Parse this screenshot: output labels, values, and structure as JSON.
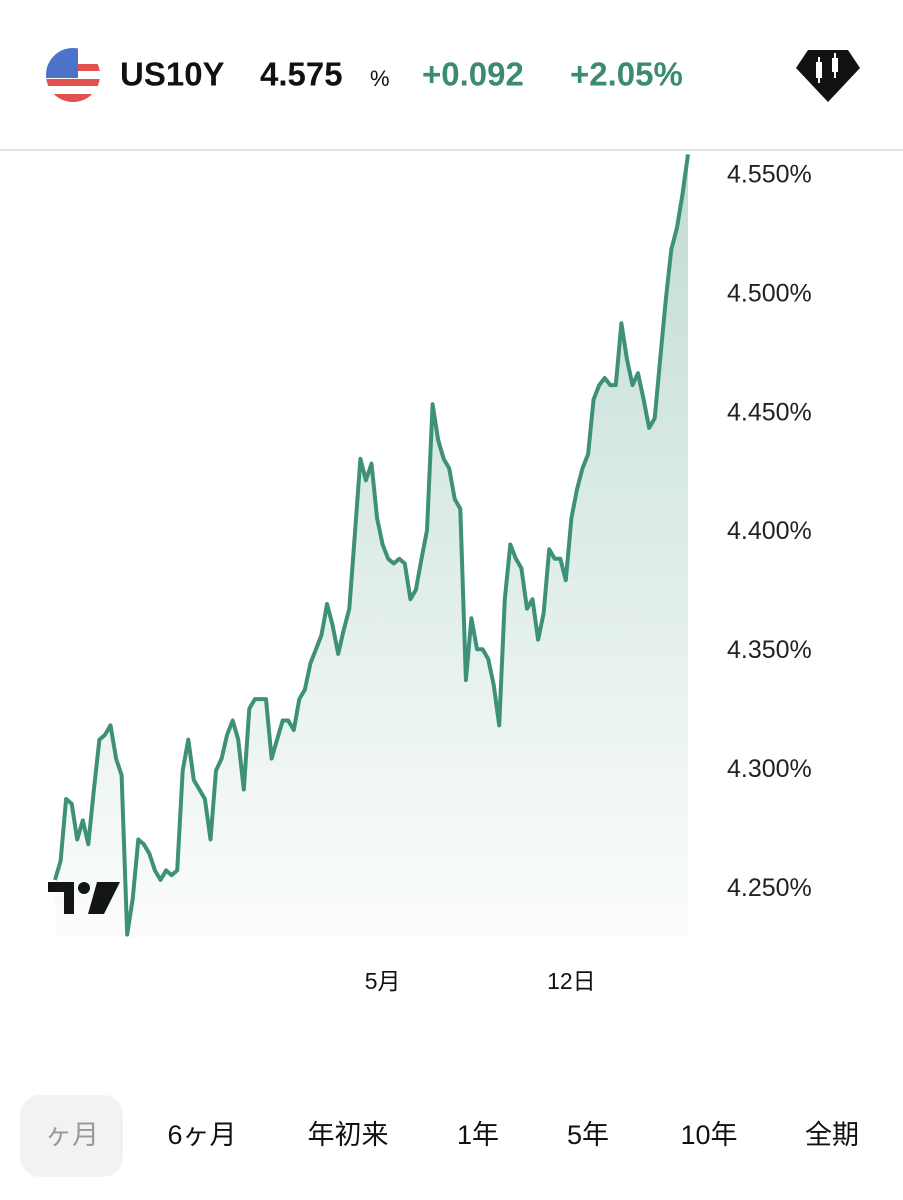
{
  "header": {
    "symbol": "US10Y",
    "price": "4.575",
    "unit": "%",
    "change": "+0.092",
    "change_percent": "+2.05%"
  },
  "chart_data": {
    "type": "line",
    "color": "#3e9079",
    "values": [
      4.254,
      4.262,
      4.288,
      4.286,
      4.271,
      4.279,
      4.269,
      4.292,
      4.313,
      4.315,
      4.319,
      4.305,
      4.298,
      4.231,
      4.246,
      4.271,
      4.269,
      4.265,
      4.258,
      4.254,
      4.258,
      4.256,
      4.258,
      4.3,
      4.313,
      4.296,
      4.292,
      4.288,
      4.271,
      4.3,
      4.305,
      4.315,
      4.321,
      4.313,
      4.292,
      4.326,
      4.33,
      4.33,
      4.33,
      4.305,
      4.313,
      4.321,
      4.321,
      4.317,
      4.33,
      4.334,
      4.345,
      4.351,
      4.357,
      4.37,
      4.361,
      4.349,
      4.359,
      4.368,
      4.399,
      4.431,
      4.422,
      4.429,
      4.406,
      4.395,
      4.389,
      4.387,
      4.389,
      4.387,
      4.372,
      4.376,
      4.389,
      4.401,
      4.454,
      4.439,
      4.431,
      4.427,
      4.414,
      4.41,
      4.338,
      4.364,
      4.351,
      4.351,
      4.347,
      4.336,
      4.319,
      4.372,
      4.395,
      4.389,
      4.385,
      4.368,
      4.372,
      4.355,
      4.366,
      4.393,
      4.389,
      4.389,
      4.38,
      4.406,
      4.418,
      4.427,
      4.433,
      4.456,
      4.462,
      4.465,
      4.462,
      4.462,
      4.488,
      4.473,
      4.462,
      4.467,
      4.456,
      4.444,
      4.448,
      4.473,
      4.498,
      4.519,
      4.528,
      4.542,
      4.559
    ],
    "categories": [
      null,
      null,
      null,
      null,
      null,
      null,
      null,
      null,
      null,
      null,
      null,
      null,
      null,
      null,
      null,
      null,
      null,
      null,
      null,
      null,
      null,
      null,
      null,
      null,
      null,
      null,
      null,
      null,
      null,
      null,
      null,
      null,
      null,
      null,
      null,
      null,
      null,
      null,
      null,
      null,
      null,
      null,
      null,
      null,
      null,
      null,
      null,
      null,
      null,
      null,
      null,
      null,
      null,
      null,
      null,
      null,
      null,
      null,
      null,
      "5月",
      null,
      null,
      null,
      null,
      null,
      null,
      null,
      null,
      null,
      null,
      null,
      null,
      null,
      null,
      null,
      null,
      null,
      null,
      null,
      null,
      null,
      null,
      null,
      null,
      null,
      null,
      null,
      null,
      null,
      null,
      null,
      null,
      null,
      "12日",
      null,
      null,
      null,
      null,
      null,
      null,
      null,
      null,
      null,
      null,
      null,
      null,
      null,
      null,
      null,
      null,
      null,
      null,
      null,
      null,
      null
    ],
    "ylim": [
      4.23,
      4.56
    ],
    "yticks": [
      {
        "value": 4.25,
        "label": "4.250%"
      },
      {
        "value": 4.3,
        "label": "4.300%"
      },
      {
        "value": 4.35,
        "label": "4.350%"
      },
      {
        "value": 4.4,
        "label": "4.400%"
      },
      {
        "value": 4.45,
        "label": "4.450%"
      },
      {
        "value": 4.5,
        "label": "4.500%"
      },
      {
        "value": 4.55,
        "label": "4.550%"
      }
    ]
  },
  "tabs": [
    "ヶ月",
    "6ヶ月",
    "年初来",
    "1年",
    "5年",
    "10年",
    "全期"
  ]
}
